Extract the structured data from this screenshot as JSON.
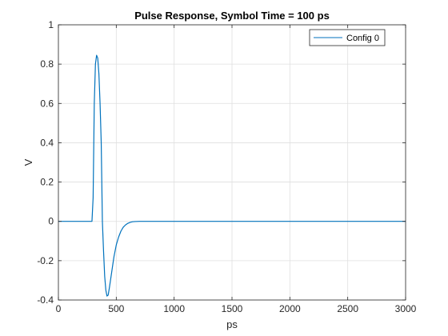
{
  "chart_data": {
    "type": "line",
    "title": "Pulse Response, Symbol Time = 100 ps",
    "xlabel": "ps",
    "ylabel": "V",
    "xlim": [
      0,
      3000
    ],
    "ylim": [
      -0.4,
      1
    ],
    "xticks": [
      0,
      500,
      1000,
      1500,
      2000,
      2500,
      3000
    ],
    "xtick_labels": [
      "0",
      "500",
      "1000",
      "1500",
      "2000",
      "2500",
      "3000"
    ],
    "yticks": [
      -0.4,
      -0.2,
      0,
      0.2,
      0.4,
      0.6,
      0.8,
      1
    ],
    "ytick_labels": [
      "-0.4",
      "-0.2",
      "0",
      "0.2",
      "0.4",
      "0.6",
      "0.8",
      "1"
    ],
    "grid": true,
    "legend_position": "top-right",
    "series": [
      {
        "name": "Config 0",
        "color": "#0072BD",
        "x": [
          0,
          290,
          300,
          310,
          320,
          330,
          340,
          350,
          360,
          370,
          380,
          390,
          400,
          410,
          420,
          430,
          440,
          450,
          460,
          470,
          480,
          500,
          520,
          540,
          560,
          580,
          600,
          620,
          640,
          660,
          700,
          800,
          1000,
          1500,
          2000,
          2500,
          3000
        ],
        "y": [
          0,
          0,
          0.12,
          0.6,
          0.8,
          0.845,
          0.83,
          0.75,
          0.6,
          0.4,
          0.0,
          -0.15,
          -0.28,
          -0.35,
          -0.38,
          -0.375,
          -0.34,
          -0.3,
          -0.26,
          -0.22,
          -0.18,
          -0.12,
          -0.08,
          -0.05,
          -0.03,
          -0.018,
          -0.01,
          -0.005,
          -0.002,
          -0.001,
          0,
          0,
          0,
          0,
          0,
          0,
          0
        ]
      }
    ]
  }
}
